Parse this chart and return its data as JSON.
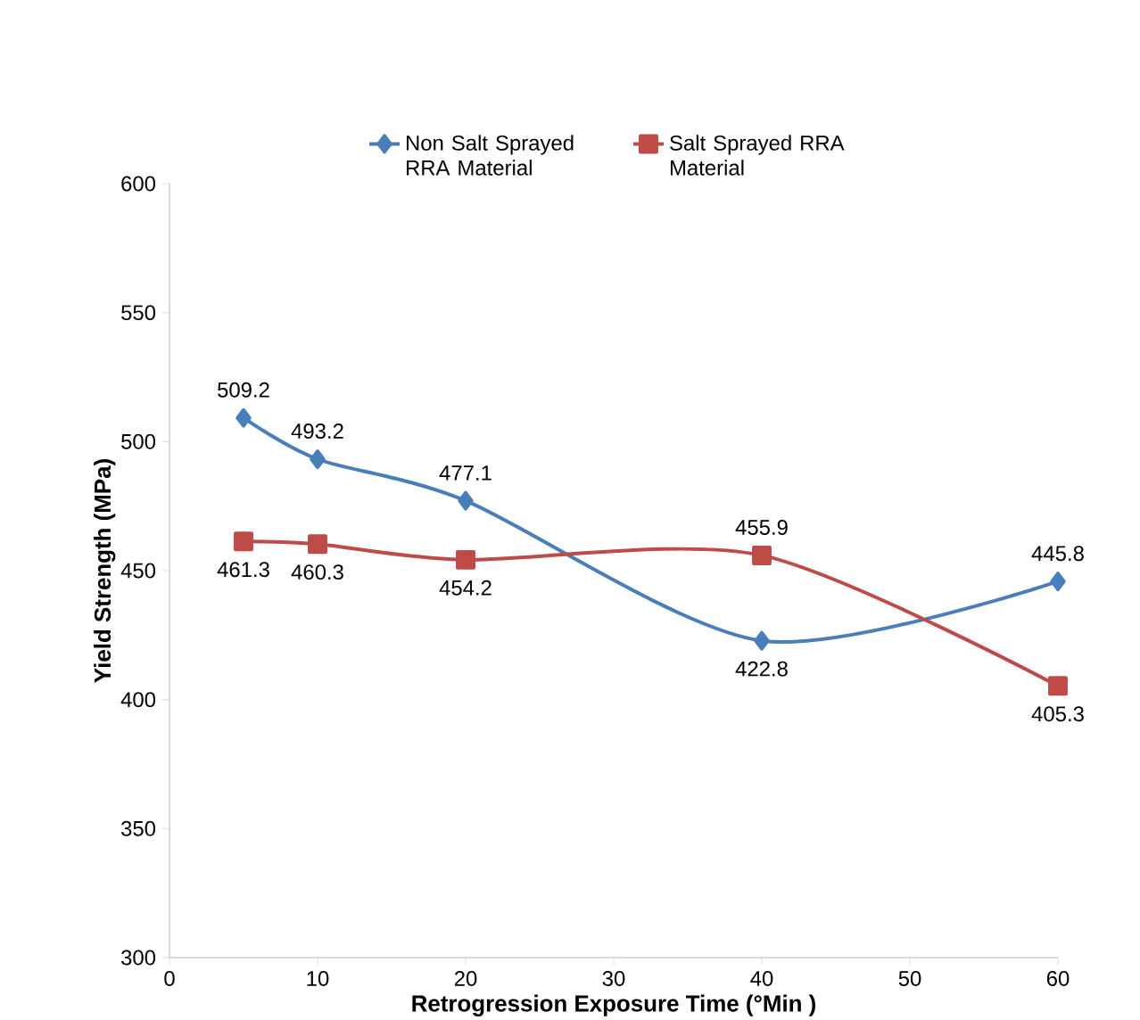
{
  "chart_data": {
    "type": "line",
    "xlabel": "Retrogression Exposure Time (°Min )",
    "ylabel": "Yield Strength (MPa)",
    "series": [
      {
        "name": "Non Salt Sprayed RRA Material",
        "color": "#4a7ebb",
        "marker": "diamond",
        "x": [
          5,
          10,
          20,
          40,
          60
        ],
        "values": [
          509.2,
          493.2,
          477.1,
          422.8,
          445.8
        ]
      },
      {
        "name": "Salt Sprayed RRA Material",
        "color": "#be4b48",
        "marker": "square",
        "x": [
          5,
          10,
          20,
          40,
          60
        ],
        "values": [
          461.3,
          460.3,
          454.2,
          455.9,
          405.3
        ]
      }
    ],
    "xlim": [
      0,
      60
    ],
    "xticks": [
      0,
      10,
      20,
      30,
      40,
      50,
      60
    ],
    "ylim": [
      300,
      600
    ],
    "yticks": [
      300,
      350,
      400,
      450,
      500,
      550,
      600
    ],
    "legend": "top",
    "data_labels": true,
    "line_style": "solid",
    "grid": false
  }
}
